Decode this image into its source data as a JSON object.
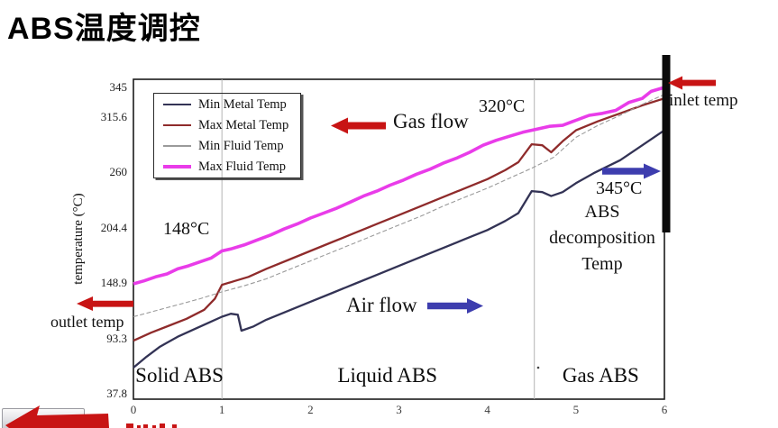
{
  "title": "ABS温度调控",
  "colors": {
    "red_arrow": "#c81414",
    "blue_arrow": "#3d3dae",
    "black_bar": "#0b0b0b",
    "plot_border": "#1c1c1c",
    "divider": "#b3b3b3"
  },
  "chart_data": {
    "type": "line",
    "xlabel": "",
    "ylabel": "temperature (°C)",
    "xlim": [
      0,
      6
    ],
    "ylim": [
      37.8,
      345
    ],
    "x_ticks": [
      0,
      1,
      2,
      3,
      4,
      5,
      6
    ],
    "y_ticks": [
      345,
      315.6,
      260,
      204.4,
      148.9,
      93.3,
      37.8
    ],
    "grid": false,
    "legend_position": "upper-left",
    "region_dividers_x": [
      1,
      4.53
    ],
    "regions": [
      {
        "label": "Solid ABS",
        "x_center": 0.52
      },
      {
        "label": "Liquid ABS",
        "x_center": 2.87
      },
      {
        "label": "Gas ABS",
        "x_center": 5.28
      }
    ],
    "series": [
      {
        "name": "Min Metal Temp",
        "color": "#333355",
        "width": 2.3,
        "dash": "",
        "points": [
          [
            0,
            64
          ],
          [
            0.15,
            75
          ],
          [
            0.3,
            85
          ],
          [
            0.5,
            95
          ],
          [
            0.7,
            103
          ],
          [
            0.85,
            109
          ],
          [
            1,
            115
          ],
          [
            1.1,
            118
          ],
          [
            1.18,
            117
          ],
          [
            1.22,
            101
          ],
          [
            1.35,
            105
          ],
          [
            1.5,
            112
          ],
          [
            1.75,
            121
          ],
          [
            2,
            130
          ],
          [
            2.25,
            139
          ],
          [
            2.5,
            148
          ],
          [
            2.75,
            157
          ],
          [
            3,
            166
          ],
          [
            3.25,
            175
          ],
          [
            3.5,
            184
          ],
          [
            3.75,
            193
          ],
          [
            4,
            202
          ],
          [
            4.2,
            211
          ],
          [
            4.35,
            219
          ],
          [
            4.5,
            241
          ],
          [
            4.62,
            240
          ],
          [
            4.72,
            236
          ],
          [
            4.85,
            240
          ],
          [
            5,
            249
          ],
          [
            5.2,
            259
          ],
          [
            5.5,
            272
          ],
          [
            5.75,
            287
          ],
          [
            6,
            302
          ]
        ]
      },
      {
        "name": "Max Metal Temp",
        "color": "#8f2b2b",
        "width": 2.3,
        "dash": "",
        "points": [
          [
            0,
            91
          ],
          [
            0.2,
            99
          ],
          [
            0.4,
            106
          ],
          [
            0.6,
            113
          ],
          [
            0.8,
            122
          ],
          [
            0.92,
            133
          ],
          [
            1,
            147
          ],
          [
            1.15,
            151
          ],
          [
            1.3,
            155
          ],
          [
            1.5,
            163
          ],
          [
            1.75,
            172
          ],
          [
            2,
            181
          ],
          [
            2.25,
            190
          ],
          [
            2.5,
            199
          ],
          [
            2.75,
            208
          ],
          [
            3,
            217
          ],
          [
            3.25,
            226
          ],
          [
            3.5,
            235
          ],
          [
            3.75,
            244
          ],
          [
            4,
            253
          ],
          [
            4.2,
            262
          ],
          [
            4.35,
            270
          ],
          [
            4.5,
            288
          ],
          [
            4.62,
            287
          ],
          [
            4.72,
            280
          ],
          [
            4.85,
            291
          ],
          [
            5,
            302
          ],
          [
            5.25,
            311
          ],
          [
            5.5,
            319
          ],
          [
            5.75,
            327
          ],
          [
            6,
            334
          ]
        ]
      },
      {
        "name": "Min Fluid Temp",
        "color": "#9a9a9a",
        "width": 1.1,
        "dash": "5 2.5",
        "points": [
          [
            0,
            115
          ],
          [
            0.25,
            121
          ],
          [
            0.5,
            127
          ],
          [
            0.75,
            133
          ],
          [
            1,
            140
          ],
          [
            1.25,
            146
          ],
          [
            1.5,
            153
          ],
          [
            1.75,
            162
          ],
          [
            2,
            171
          ],
          [
            2.25,
            180
          ],
          [
            2.5,
            189
          ],
          [
            2.75,
            198
          ],
          [
            3,
            207
          ],
          [
            3.25,
            216
          ],
          [
            3.5,
            226
          ],
          [
            3.75,
            235
          ],
          [
            4,
            244
          ],
          [
            4.25,
            254
          ],
          [
            4.5,
            264
          ],
          [
            4.75,
            275
          ],
          [
            5,
            295
          ],
          [
            5.25,
            307
          ],
          [
            5.5,
            317
          ],
          [
            5.75,
            328
          ],
          [
            6,
            338
          ]
        ]
      },
      {
        "name": "Max Fluid Temp",
        "color": "#e93ce9",
        "width": 3.6,
        "dash": "",
        "points": [
          [
            0,
            148
          ],
          [
            0.12,
            151
          ],
          [
            0.25,
            155
          ],
          [
            0.38,
            158
          ],
          [
            0.5,
            163
          ],
          [
            0.62,
            166
          ],
          [
            0.75,
            170
          ],
          [
            0.88,
            174
          ],
          [
            1,
            181
          ],
          [
            1.1,
            183
          ],
          [
            1.25,
            187
          ],
          [
            1.4,
            192
          ],
          [
            1.55,
            197
          ],
          [
            1.7,
            203
          ],
          [
            1.85,
            208
          ],
          [
            2,
            214
          ],
          [
            2.15,
            219
          ],
          [
            2.3,
            224
          ],
          [
            2.45,
            230
          ],
          [
            2.6,
            236
          ],
          [
            2.75,
            241
          ],
          [
            2.9,
            247
          ],
          [
            3.05,
            252
          ],
          [
            3.2,
            258
          ],
          [
            3.35,
            263
          ],
          [
            3.5,
            269
          ],
          [
            3.65,
            274
          ],
          [
            3.8,
            280
          ],
          [
            3.95,
            287
          ],
          [
            4.1,
            292
          ],
          [
            4.25,
            296
          ],
          [
            4.4,
            300
          ],
          [
            4.55,
            303
          ],
          [
            4.7,
            306
          ],
          [
            4.85,
            307
          ],
          [
            5,
            312
          ],
          [
            5.15,
            317
          ],
          [
            5.3,
            319
          ],
          [
            5.45,
            322
          ],
          [
            5.6,
            330
          ],
          [
            5.75,
            334
          ],
          [
            5.85,
            341
          ],
          [
            6,
            345
          ]
        ]
      }
    ],
    "annotations": {
      "temp_148": "148°C",
      "temp_320": "320°C",
      "temp_345": "345°C",
      "gas_flow": "Gas flow",
      "air_flow": "Air flow",
      "decomposition": "ABS\ndecomposition\nTemp",
      "inlet": "inlet temp",
      "outlet": "outlet temp"
    }
  }
}
